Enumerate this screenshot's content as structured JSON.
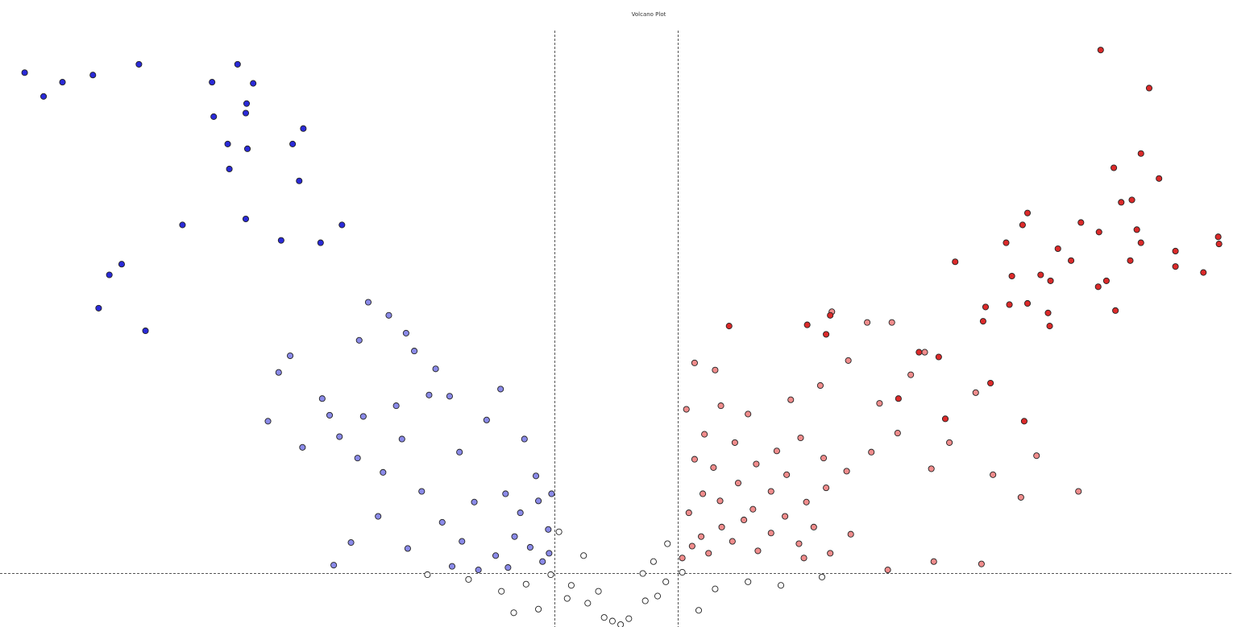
{
  "chart_data": {
    "type": "scatter",
    "title": "Volcano Plot",
    "xlabel": "",
    "ylabel": "",
    "xlim": [
      -7.5,
      7.5
    ],
    "ylim": [
      0,
      5
    ],
    "grid": false,
    "legend": "none",
    "thresholds": {
      "fc_low": -0.75,
      "fc_high": 0.75,
      "p_line": 0.45
    },
    "colors": {
      "down_strong": "#2a2ad8",
      "down_weak": "#8a8ae8",
      "up_strong": "#dc2a2a",
      "up_weak": "#f08c8c",
      "not_sig": "#ffffff"
    },
    "series": [
      {
        "name": "",
        "color": "#2a2ad8",
        "points": [
          [
            -7.2,
            4.66
          ],
          [
            -6.97,
            4.46
          ],
          [
            -6.74,
            4.58
          ],
          [
            -6.37,
            4.64
          ],
          [
            -4.92,
            4.58
          ],
          [
            -4.61,
            4.73
          ],
          [
            -5.81,
            4.73
          ],
          [
            -4.5,
            4.4
          ],
          [
            -4.42,
            4.57
          ],
          [
            -4.9,
            4.29
          ],
          [
            -4.51,
            4.32
          ],
          [
            -3.81,
            4.19
          ],
          [
            -4.71,
            3.85
          ],
          [
            -4.49,
            4.02
          ],
          [
            -4.73,
            4.06
          ],
          [
            -3.94,
            4.06
          ],
          [
            -3.86,
            3.75
          ],
          [
            -4.51,
            3.43
          ],
          [
            -5.28,
            3.38
          ],
          [
            -6.02,
            3.05
          ],
          [
            -5.73,
            2.49
          ],
          [
            -6.3,
            2.68
          ],
          [
            -6.17,
            2.96
          ],
          [
            -3.34,
            3.38
          ],
          [
            -3.6,
            3.23
          ],
          [
            -4.08,
            3.25
          ]
        ]
      },
      {
        "name": "",
        "color": "#8a8ae8",
        "points": [
          [
            -4.24,
            1.73
          ],
          [
            -4.11,
            2.14
          ],
          [
            -3.97,
            2.28
          ],
          [
            -3.82,
            1.51
          ],
          [
            -3.58,
            1.92
          ],
          [
            -3.49,
            1.78
          ],
          [
            -3.37,
            1.6
          ],
          [
            -3.13,
            2.41
          ],
          [
            -3.02,
            2.73
          ],
          [
            -2.77,
            2.62
          ],
          [
            -2.56,
            2.47
          ],
          [
            -2.46,
            2.32
          ],
          [
            -2.2,
            2.17
          ],
          [
            -2.03,
            1.94
          ],
          [
            -1.58,
            1.74
          ],
          [
            -1.41,
            2.0
          ],
          [
            -2.61,
            1.58
          ],
          [
            -2.84,
            1.3
          ],
          [
            -3.15,
            1.42
          ],
          [
            -2.9,
            0.93
          ],
          [
            -2.37,
            1.14
          ],
          [
            -2.12,
            0.88
          ],
          [
            -1.73,
            1.05
          ],
          [
            -1.35,
            1.12
          ],
          [
            -1.17,
            0.96
          ],
          [
            -0.95,
            1.06
          ],
          [
            -0.83,
            0.82
          ],
          [
            -1.05,
            0.67
          ],
          [
            -1.47,
            0.6
          ],
          [
            -1.88,
            0.72
          ],
          [
            -2.54,
            0.66
          ],
          [
            -3.23,
            0.71
          ],
          [
            -3.44,
            0.52
          ],
          [
            -2.0,
            0.51
          ],
          [
            -1.68,
            0.48
          ],
          [
            -1.32,
            0.5
          ],
          [
            -0.9,
            0.55
          ],
          [
            -3.08,
            1.77
          ],
          [
            -2.68,
            1.86
          ],
          [
            -2.28,
            1.95
          ],
          [
            -1.91,
            1.47
          ],
          [
            -1.12,
            1.58
          ],
          [
            -0.98,
            1.27
          ],
          [
            -1.24,
            0.76
          ],
          [
            -0.82,
            0.62
          ],
          [
            -0.79,
            1.12
          ]
        ]
      },
      {
        "name": "",
        "color": "#ffffff",
        "points": [
          [
            -1.1,
            0.36
          ],
          [
            -0.8,
            0.44
          ],
          [
            -0.55,
            0.35
          ],
          [
            -0.35,
            0.2
          ],
          [
            -0.15,
            0.08
          ],
          [
            0.15,
            0.07
          ],
          [
            0.35,
            0.22
          ],
          [
            0.6,
            0.38
          ],
          [
            0.8,
            0.46
          ],
          [
            0.5,
            0.26
          ],
          [
            -0.6,
            0.24
          ],
          [
            -0.95,
            0.15
          ],
          [
            -1.4,
            0.3
          ],
          [
            -1.8,
            0.4
          ],
          [
            1.2,
            0.32
          ],
          [
            1.6,
            0.38
          ],
          [
            2.0,
            0.35
          ],
          [
            2.5,
            0.42
          ],
          [
            -2.3,
            0.44
          ],
          [
            -0.7,
            0.8
          ],
          [
            -0.4,
            0.6
          ],
          [
            0.45,
            0.55
          ],
          [
            0.62,
            0.7
          ],
          [
            0.32,
            0.45
          ],
          [
            -0.22,
            0.3
          ],
          [
            -0.05,
            0.05
          ],
          [
            0.05,
            0.02
          ],
          [
            1.0,
            0.14
          ],
          [
            -1.25,
            0.12
          ]
        ]
      },
      {
        "name": "",
        "color": "#f08c8c",
        "points": [
          [
            0.8,
            0.58
          ],
          [
            0.92,
            0.68
          ],
          [
            1.03,
            0.76
          ],
          [
            1.12,
            0.62
          ],
          [
            1.28,
            0.84
          ],
          [
            1.41,
            0.72
          ],
          [
            1.55,
            0.9
          ],
          [
            1.72,
            0.64
          ],
          [
            1.88,
            0.79
          ],
          [
            2.05,
            0.93
          ],
          [
            2.22,
            0.7
          ],
          [
            2.4,
            0.84
          ],
          [
            2.6,
            0.62
          ],
          [
            2.85,
            0.78
          ],
          [
            0.88,
            0.96
          ],
          [
            1.05,
            1.12
          ],
          [
            1.26,
            1.06
          ],
          [
            1.48,
            1.21
          ],
          [
            1.66,
            0.99
          ],
          [
            1.88,
            1.14
          ],
          [
            2.07,
            1.28
          ],
          [
            2.31,
            1.05
          ],
          [
            2.55,
            1.17
          ],
          [
            0.95,
            1.41
          ],
          [
            1.18,
            1.34
          ],
          [
            1.44,
            1.55
          ],
          [
            1.7,
            1.37
          ],
          [
            1.95,
            1.48
          ],
          [
            2.24,
            1.59
          ],
          [
            2.52,
            1.42
          ],
          [
            2.8,
            1.31
          ],
          [
            3.1,
            1.47
          ],
          [
            3.42,
            1.63
          ],
          [
            3.83,
            1.33
          ],
          [
            1.27,
            1.86
          ],
          [
            1.6,
            1.79
          ],
          [
            2.12,
            1.91
          ],
          [
            2.48,
            2.03
          ],
          [
            2.82,
            2.24
          ],
          [
            3.2,
            1.88
          ],
          [
            3.58,
            2.12
          ],
          [
            0.95,
            2.22
          ],
          [
            1.2,
            2.16
          ],
          [
            1.07,
            1.62
          ],
          [
            2.62,
            2.65
          ],
          [
            3.05,
            2.56
          ],
          [
            3.35,
            2.56
          ],
          [
            3.75,
            2.31
          ],
          [
            4.37,
            1.97
          ],
          [
            4.05,
            1.55
          ],
          [
            4.58,
            1.28
          ],
          [
            4.92,
            1.09
          ],
          [
            5.11,
            1.44
          ],
          [
            5.62,
            1.14
          ],
          [
            2.28,
            0.58
          ],
          [
            3.3,
            0.48
          ],
          [
            3.86,
            0.55
          ],
          [
            4.44,
            0.53
          ],
          [
            0.85,
            1.83
          ]
        ]
      },
      {
        "name": "",
        "color": "#dc2a2a",
        "points": [
          [
            1.37,
            2.53
          ],
          [
            2.32,
            2.54
          ],
          [
            2.6,
            2.62
          ],
          [
            2.55,
            2.46
          ],
          [
            3.92,
            2.27
          ],
          [
            4.46,
            2.57
          ],
          [
            4.78,
            2.71
          ],
          [
            5.28,
            2.91
          ],
          [
            5.86,
            2.86
          ],
          [
            6.07,
            2.66
          ],
          [
            5.0,
            2.72
          ],
          [
            5.25,
            2.64
          ],
          [
            4.81,
            2.95
          ],
          [
            5.16,
            2.96
          ],
          [
            6.25,
            3.08
          ],
          [
            4.94,
            3.38
          ],
          [
            5.0,
            3.48
          ],
          [
            5.65,
            3.4
          ],
          [
            5.96,
            2.91
          ],
          [
            5.53,
            3.08
          ],
          [
            6.38,
            3.23
          ],
          [
            6.8,
            3.03
          ],
          [
            7.14,
            2.98
          ],
          [
            7.33,
            3.22
          ],
          [
            7.32,
            3.28
          ],
          [
            6.33,
            3.34
          ],
          [
            6.27,
            3.59
          ],
          [
            6.38,
            3.98
          ],
          [
            6.48,
            4.53
          ],
          [
            5.89,
            4.85
          ],
          [
            6.6,
            3.77
          ],
          [
            6.8,
            3.16
          ],
          [
            4.49,
            2.69
          ],
          [
            4.12,
            3.07
          ],
          [
            4.74,
            3.23
          ],
          [
            5.37,
            3.18
          ],
          [
            5.87,
            3.32
          ],
          [
            6.14,
            3.57
          ],
          [
            6.05,
            3.86
          ],
          [
            5.27,
            2.53
          ],
          [
            4.55,
            2.05
          ],
          [
            3.68,
            2.31
          ],
          [
            3.43,
            1.92
          ],
          [
            4.0,
            1.75
          ],
          [
            4.96,
            1.73
          ]
        ]
      }
    ]
  }
}
